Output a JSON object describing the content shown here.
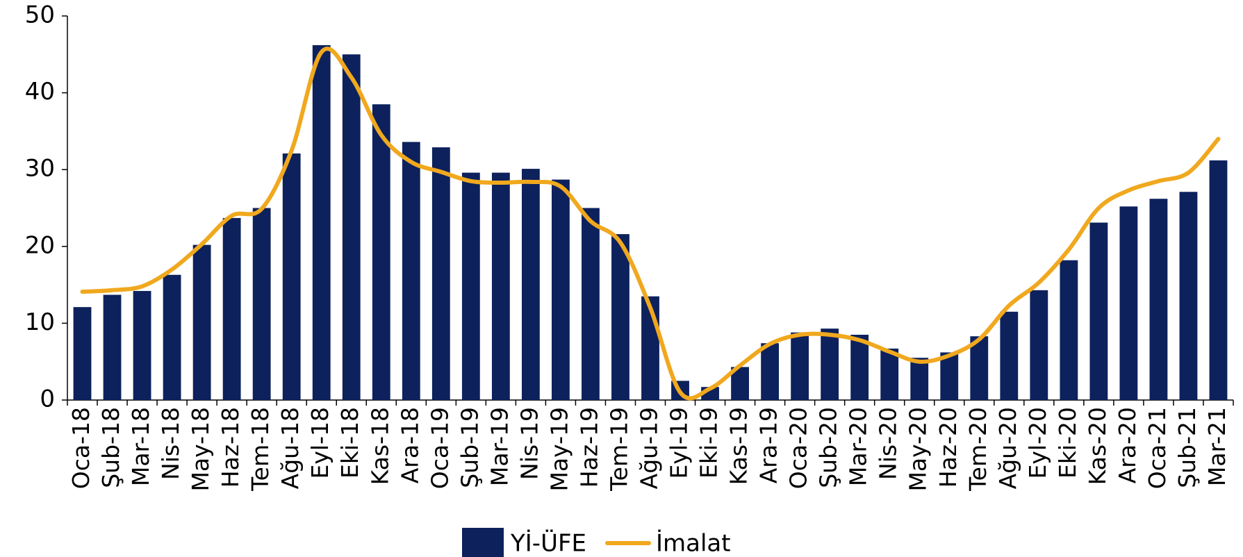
{
  "chart_data": {
    "type": "bar-line",
    "categories": [
      "Oca-18",
      "Şub-18",
      "Mar-18",
      "Nis-18",
      "May-18",
      "Haz-18",
      "Tem-18",
      "Ağu-18",
      "Eyl-18",
      "Eki-18",
      "Kas-18",
      "Ara-18",
      "Oca-19",
      "Şub-19",
      "Mar-19",
      "Nis-19",
      "May-19",
      "Haz-19",
      "Tem-19",
      "Ağu-19",
      "Eyl-19",
      "Eki-19",
      "Kas-19",
      "Ara-19",
      "Oca-20",
      "Şub-20",
      "Mar-20",
      "Nis-20",
      "May-20",
      "Haz-20",
      "Tem-20",
      "Ağu-20",
      "Eyl-20",
      "Eki-20",
      "Kas-20",
      "Ara-20",
      "Oca-21",
      "Şub-21",
      "Mar-21"
    ],
    "series": [
      {
        "name": "Yİ-ÜFE",
        "type": "bar",
        "color": "#0d215c",
        "values": [
          12.1,
          13.7,
          14.2,
          16.3,
          20.2,
          23.7,
          25.0,
          32.1,
          46.2,
          45.0,
          38.5,
          33.6,
          32.9,
          29.6,
          29.6,
          30.1,
          28.7,
          25.0,
          21.6,
          13.5,
          2.5,
          1.7,
          4.3,
          7.4,
          8.8,
          9.3,
          8.5,
          6.7,
          5.5,
          6.2,
          8.3,
          11.5,
          14.3,
          18.2,
          23.1,
          25.2,
          26.2,
          27.1,
          31.2
        ]
      },
      {
        "name": "İmalat",
        "type": "line",
        "color": "#f0a81e",
        "values": [
          14.1,
          14.3,
          14.8,
          17.0,
          20.3,
          24.0,
          24.9,
          32.5,
          45.3,
          42.0,
          34.5,
          31.0,
          29.7,
          28.5,
          28.3,
          28.4,
          27.8,
          23.3,
          20.5,
          12.0,
          1.0,
          1.5,
          4.5,
          7.3,
          8.5,
          8.5,
          7.8,
          6.3,
          5.0,
          5.8,
          7.9,
          12.3,
          15.3,
          19.6,
          25.0,
          27.3,
          28.5,
          29.6,
          34.0
        ]
      }
    ],
    "ylim": [
      0,
      50
    ],
    "yticks": [
      0,
      10,
      20,
      30,
      40,
      50
    ],
    "grid": false
  }
}
